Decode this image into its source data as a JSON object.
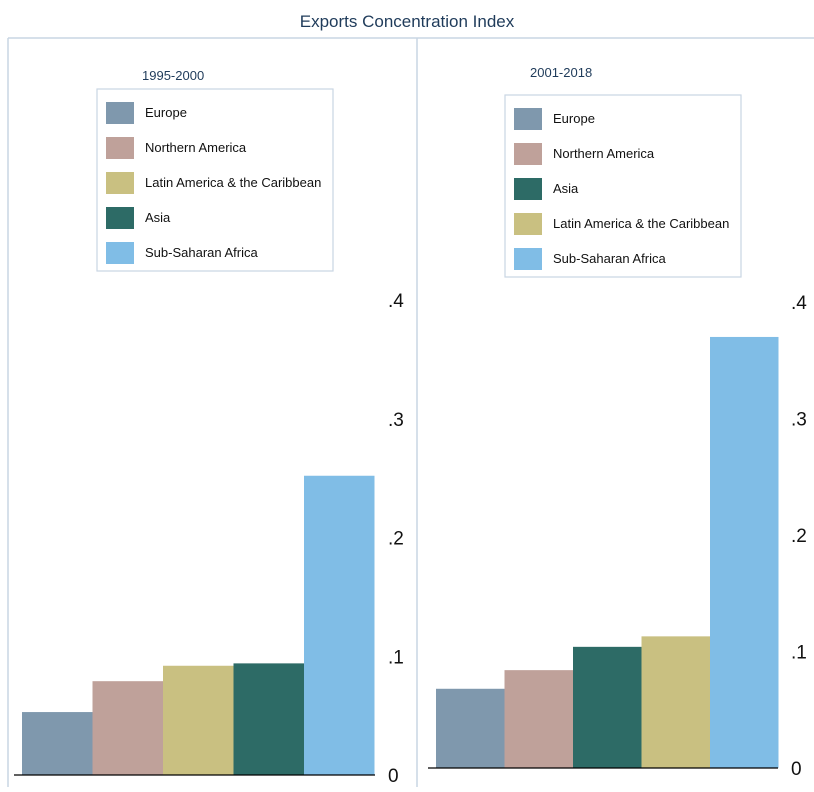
{
  "figure": {
    "title": "Exports Concentration Index",
    "title_color": "#1f3b5a"
  },
  "chart_data": [
    {
      "type": "bar",
      "title": "1995-2000",
      "xlabel": "",
      "ylabel": "",
      "ylim": [
        0,
        0.4
      ],
      "yticks": [
        0,
        0.1,
        0.2,
        0.3,
        0.4
      ],
      "ytick_labels": [
        "0",
        ".1",
        ".2",
        ".3",
        ".4"
      ],
      "y_axis_side": "right",
      "grid": false,
      "legend_position": "top",
      "series": [
        {
          "name": "Europe",
          "value": 0.053,
          "color": "#7f98ad"
        },
        {
          "name": "Northern America",
          "value": 0.079,
          "color": "#bfa19a"
        },
        {
          "name": "Latin America & the Caribbean",
          "value": 0.092,
          "color": "#c9c081"
        },
        {
          "name": "Asia",
          "value": 0.094,
          "color": "#2d6b66"
        },
        {
          "name": "Sub-Saharan Africa",
          "value": 0.252,
          "color": "#80bde6"
        }
      ]
    },
    {
      "type": "bar",
      "title": "2001-2018",
      "xlabel": "",
      "ylabel": "",
      "ylim": [
        0,
        0.4
      ],
      "yticks": [
        0,
        0.1,
        0.2,
        0.3,
        0.4
      ],
      "ytick_labels": [
        "0",
        ".1",
        ".2",
        ".3",
        ".4"
      ],
      "y_axis_side": "right",
      "grid": false,
      "legend_position": "top",
      "series": [
        {
          "name": "Europe",
          "value": 0.068,
          "color": "#7f98ad"
        },
        {
          "name": "Northern America",
          "value": 0.084,
          "color": "#bfa19a"
        },
        {
          "name": "Asia",
          "value": 0.104,
          "color": "#2d6b66"
        },
        {
          "name": "Latin America & the Caribbean",
          "value": 0.113,
          "color": "#c9c081"
        },
        {
          "name": "Sub-Saharan Africa",
          "value": 0.37,
          "color": "#80bde6"
        }
      ]
    }
  ]
}
